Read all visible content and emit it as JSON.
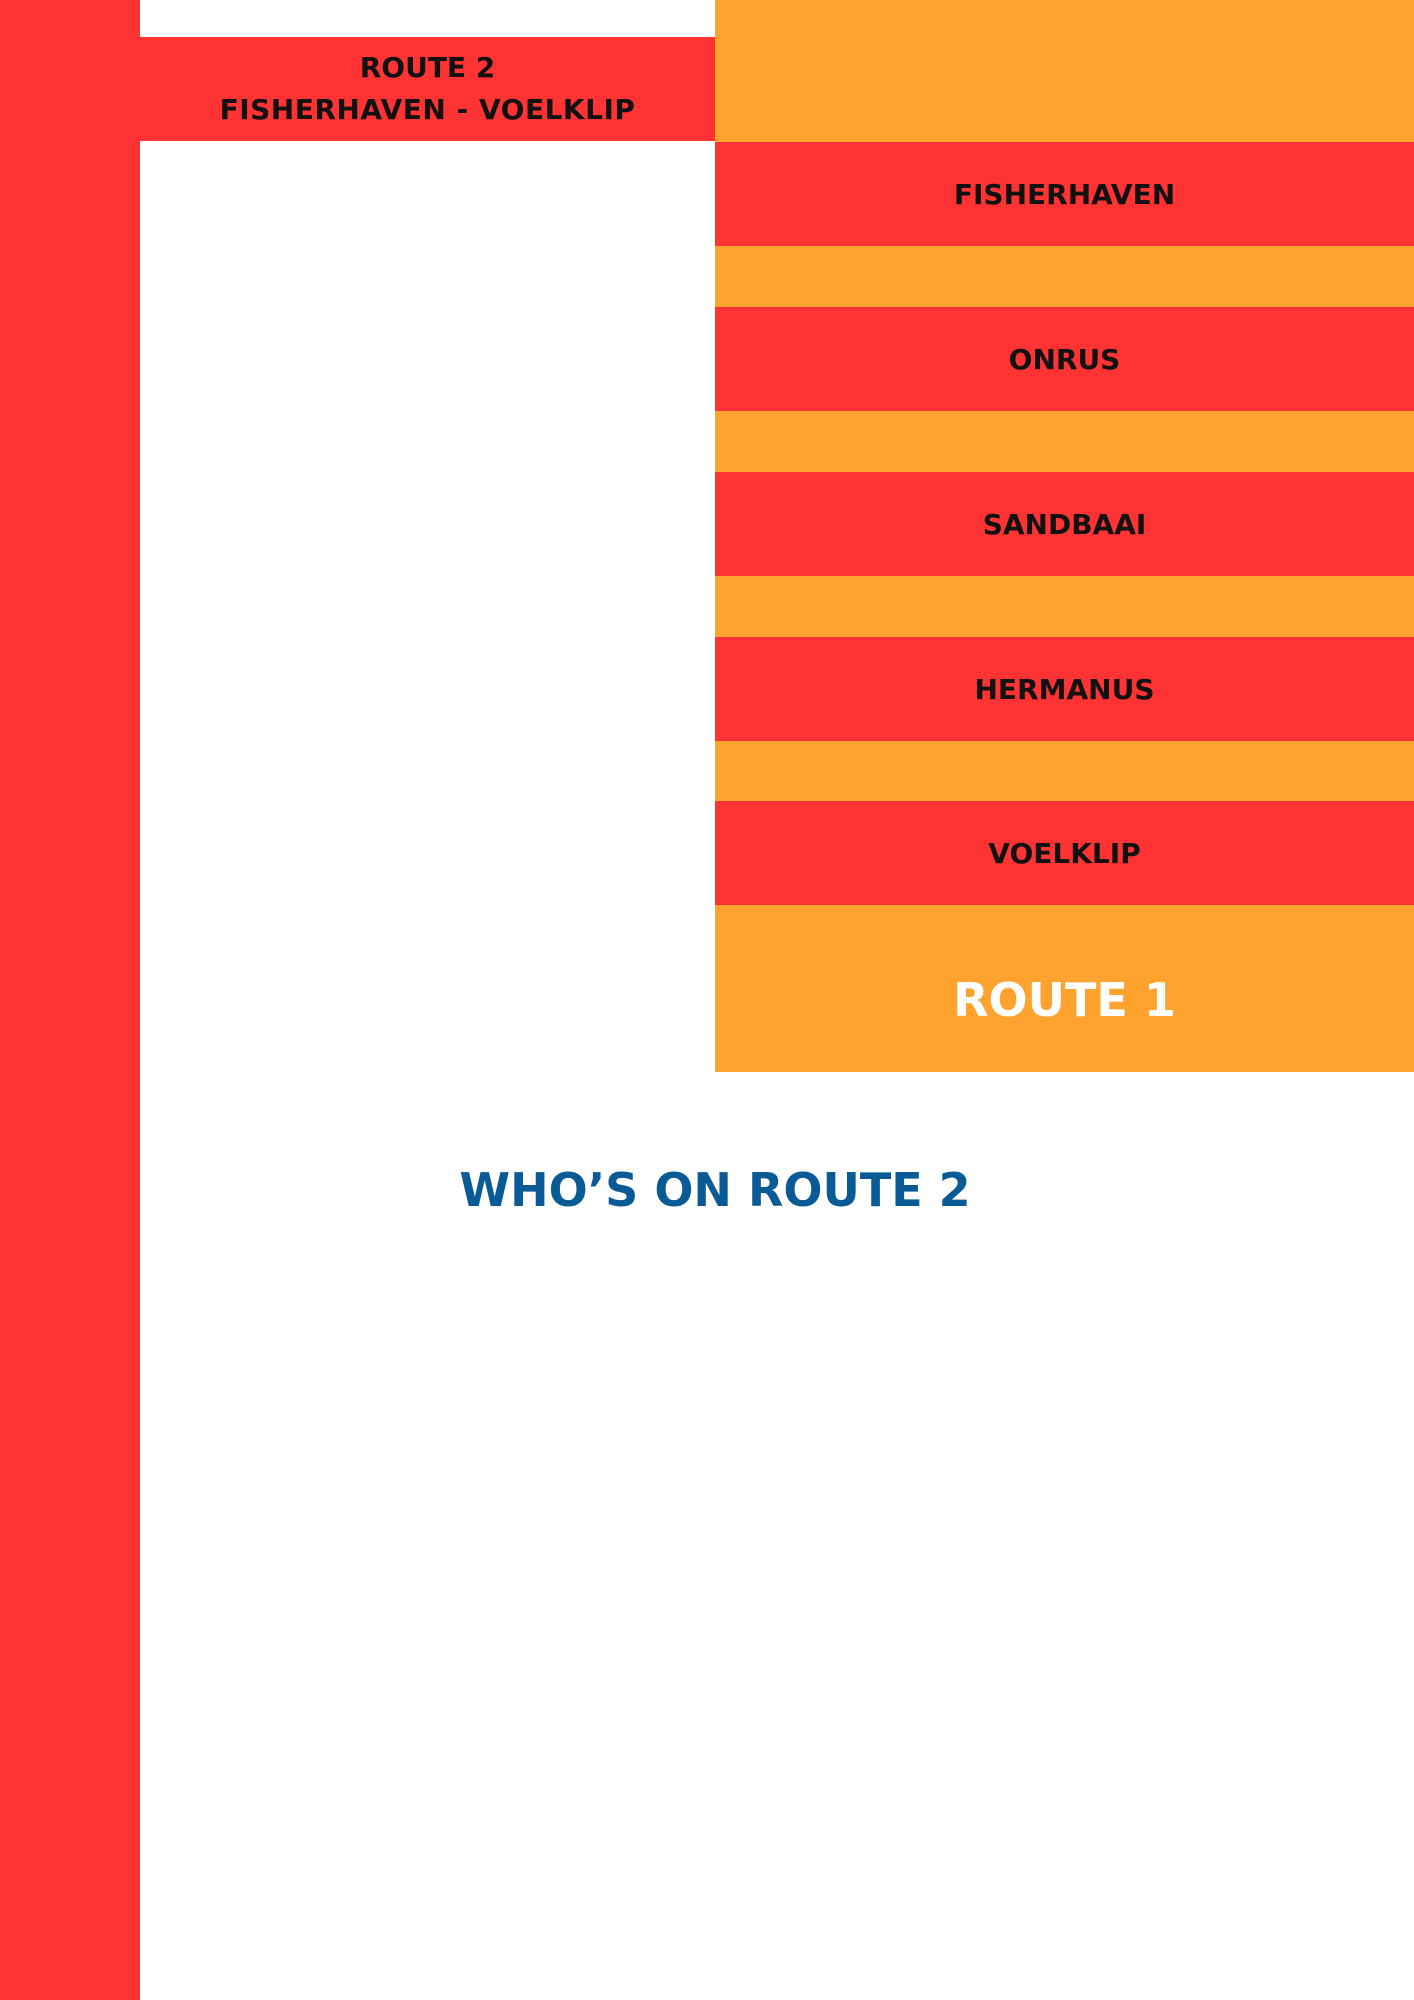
{
  "colors": {
    "red": "#FF3333",
    "orange": "#FFA32E",
    "blue": "#0A5A96"
  },
  "route2": {
    "title": "ROUTE 2",
    "subtitle": "FISHERHAVEN - VOELKLIP"
  },
  "route1": {
    "stops": [
      "FISHERHAVEN",
      "ONRUS",
      "SANDBAAI",
      "HERMANUS",
      "VOELKLIP"
    ],
    "label": "ROUTE 1"
  },
  "heading": "WHO’S ON ROUTE 2"
}
